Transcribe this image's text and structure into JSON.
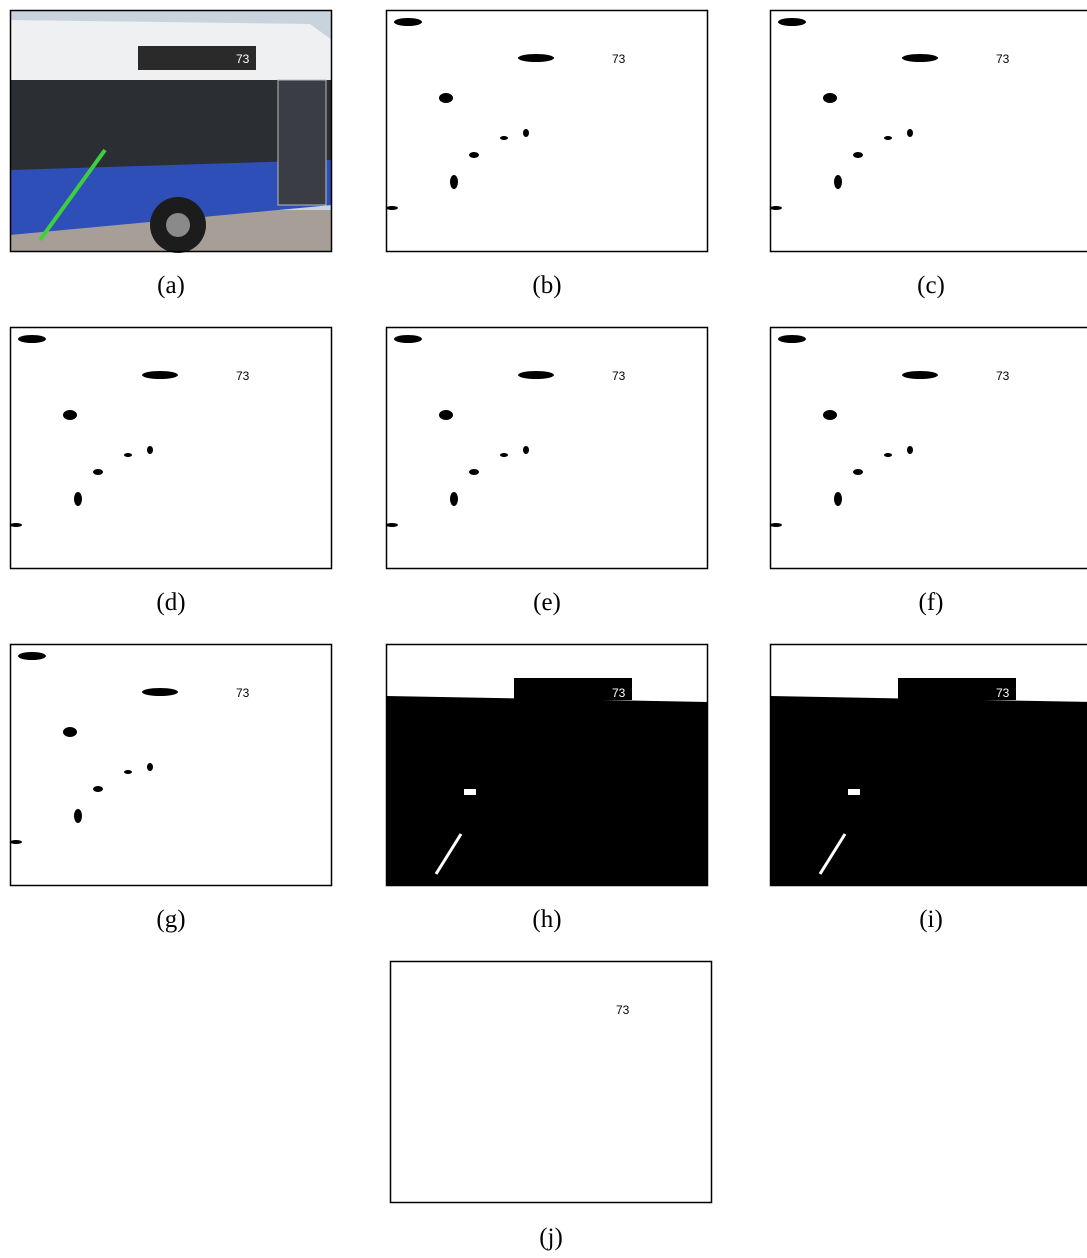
{
  "panels": [
    {
      "caption": "(a)",
      "text": "73",
      "style": "photo"
    },
    {
      "caption": "(b)",
      "text": "73",
      "style": "white"
    },
    {
      "caption": "(c)",
      "text": "73",
      "style": "white"
    },
    {
      "caption": "(d)",
      "text": "73",
      "style": "white"
    },
    {
      "caption": "(e)",
      "text": "73",
      "style": "white"
    },
    {
      "caption": "(f)",
      "text": "73",
      "style": "white"
    },
    {
      "caption": "(g)",
      "text": "73",
      "style": "white"
    },
    {
      "caption": "(h)",
      "text": "73",
      "style": "black"
    },
    {
      "caption": "(i)",
      "text": "73",
      "style": "black"
    },
    {
      "caption": "(j)",
      "text": "73",
      "style": "plain"
    }
  ]
}
